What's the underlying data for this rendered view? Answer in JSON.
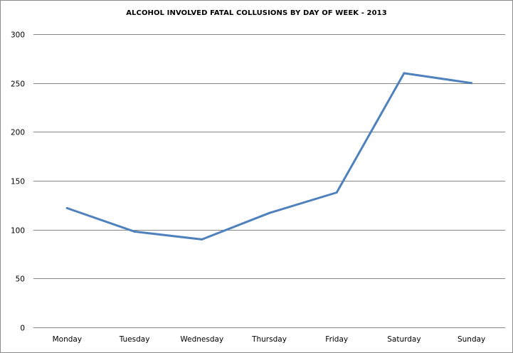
{
  "chart_data": {
    "type": "line",
    "title": "ALCOHOL INVOLVED FATAL COLLUSIONS BY DAY OF WEEK - 2013",
    "xlabel": "",
    "ylabel": "",
    "categories": [
      "Monday",
      "Tuesday",
      "Wednesday",
      "Thursday",
      "Friday",
      "Saturday",
      "Sunday"
    ],
    "series": [
      {
        "values": [
          122,
          98,
          90,
          117,
          138,
          260,
          250
        ],
        "color": "#4f81bd"
      }
    ],
    "ylim": [
      0,
      300
    ],
    "yticks": [
      0,
      50,
      100,
      150,
      200,
      250,
      300
    ],
    "grid": true,
    "legend": "none",
    "gridline_color": "#868686"
  }
}
